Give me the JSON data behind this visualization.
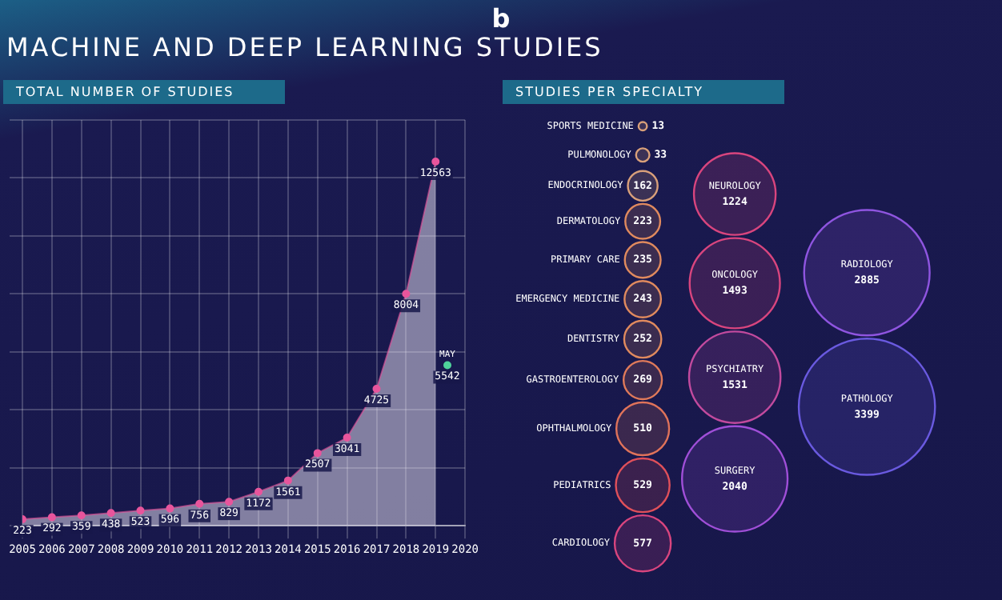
{
  "chart_data": [
    {
      "type": "area",
      "title": "MACHINE AND DEEP LEARNING STUDIES",
      "subtitle": "TOTAL NUMBER OF STUDIES",
      "annotations": [
        "b"
      ],
      "x": [
        2005,
        2006,
        2007,
        2008,
        2009,
        2010,
        2011,
        2012,
        2013,
        2014,
        2015,
        2016,
        2017,
        2018,
        2019
      ],
      "series": [
        {
          "color": "#e8559c",
          "values": [
            223,
            292,
            359,
            438,
            523,
            596,
            756,
            829,
            1172,
            1561,
            2507,
            3041,
            4725,
            8004,
            12563
          ]
        },
        {
          "name": "MAY",
          "type": "scatter",
          "x": [
            2019.4
          ],
          "color": "#4fd39b",
          "values": [
            5542
          ]
        }
      ],
      "xlim": [
        2005,
        2020
      ],
      "xticks": [
        2005,
        2006,
        2007,
        2008,
        2009,
        2010,
        2011,
        2012,
        2013,
        2014,
        2015,
        2016,
        2017,
        2018,
        2019,
        2020
      ],
      "grid": true,
      "tick_labels": "x",
      "marker": "circle",
      "data_labels": true,
      "legend": false
    },
    {
      "type": "other",
      "title": "STUDIES PER SPECIALTY",
      "categories": [
        "SPORTS MEDICINE",
        "PULMONOLOGY",
        "ENDOCRINOLOGY",
        "DERMATOLOGY",
        "PRIMARY CARE",
        "EMERGENCY MEDICINE",
        "DENTISTRY",
        "GASTROENTEROLOGY",
        "OPHTHALMOLOGY",
        "PEDIATRICS",
        "CARDIOLOGY",
        "NEUROLOGY",
        "ONCOLOGY",
        "PSYCHIATRY",
        "SURGERY",
        "RADIOLOGY",
        "PATHOLOGY"
      ],
      "values": [
        13,
        33,
        162,
        223,
        235,
        243,
        252,
        269,
        510,
        529,
        577,
        1224,
        1493,
        1531,
        2040,
        2885,
        3399
      ],
      "colors": [
        "#d9a07a",
        "#d9a07a",
        "#d9a07a",
        "#e08a5e",
        "#e08a5e",
        "#e08a5e",
        "#e08a5e",
        "#e07a5a",
        "#e0735a",
        "#e0505a",
        "#d9457e",
        "#d9457e",
        "#d9457e",
        "#c24a9e",
        "#a04fd8",
        "#8f55e0",
        "#6a5ae0"
      ],
      "data_labels": true
    }
  ]
}
